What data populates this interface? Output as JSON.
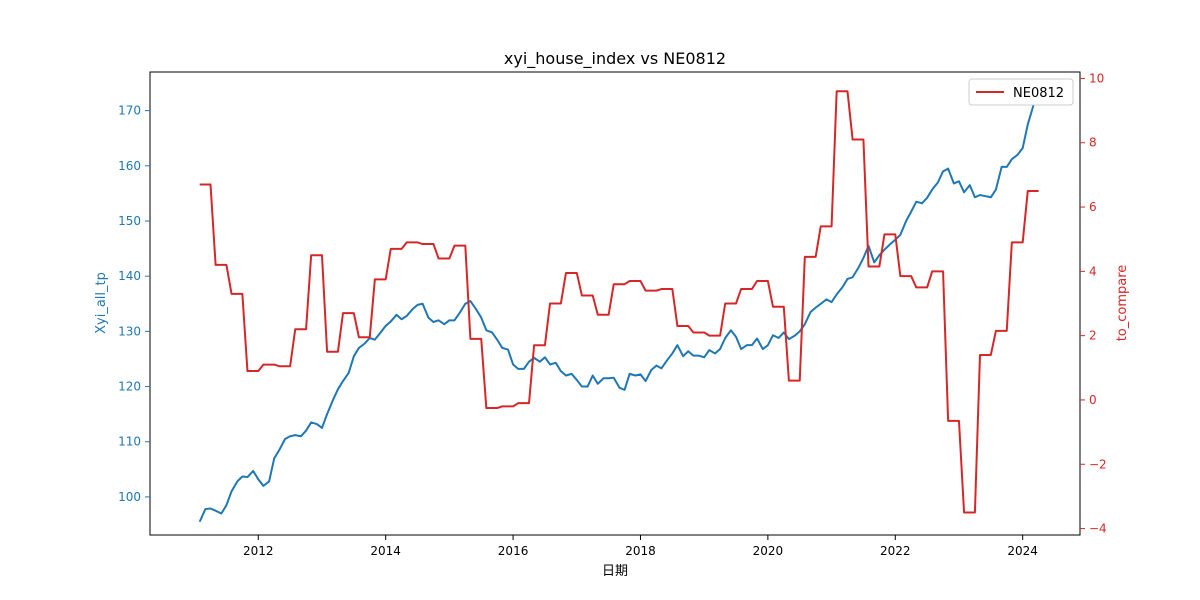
{
  "chart_data": {
    "type": "line",
    "title": "xyi_house_index vs NE0812",
    "xlabel": "日期",
    "ylabel_left": "Xyi_all_tp",
    "ylabel_right": "to_compare",
    "xlim": [
      2010.3,
      2024.9
    ],
    "ylim_left": [
      93.1,
      177.0
    ],
    "ylim_right": [
      -4.2,
      10.2
    ],
    "x_ticks": [
      "2012",
      "2014",
      "2016",
      "2018",
      "2020",
      "2022",
      "2024"
    ],
    "x_tick_values": [
      2012,
      2014,
      2016,
      2018,
      2020,
      2022,
      2024
    ],
    "y_ticks_left": [
      100,
      110,
      120,
      130,
      140,
      150,
      160,
      170
    ],
    "y_ticks_right": [
      -4,
      -2,
      0,
      2,
      4,
      6,
      8,
      10
    ],
    "grid": false,
    "legend_position": "upper-right",
    "colors": {
      "left_series": "#1f77b4",
      "right_series": "#d62728",
      "axis": "#000000"
    },
    "series": [
      {
        "axis": "left",
        "x": [
          2011.08,
          2011.17,
          2011.25,
          2011.33,
          2011.42,
          2011.5,
          2011.58,
          2011.67,
          2011.75,
          2011.83,
          2011.92,
          2012.0,
          2012.08,
          2012.17,
          2012.25,
          2012.33,
          2012.42,
          2012.5,
          2012.58,
          2012.67,
          2012.75,
          2012.83,
          2012.92,
          2013.0,
          2013.08,
          2013.17,
          2013.25,
          2013.33,
          2013.42,
          2013.5,
          2013.58,
          2013.67,
          2013.75,
          2013.83,
          2013.92,
          2014.0,
          2014.08,
          2014.17,
          2014.25,
          2014.33,
          2014.42,
          2014.5,
          2014.58,
          2014.67,
          2014.75,
          2014.83,
          2014.92,
          2015.0,
          2015.08,
          2015.17,
          2015.25,
          2015.33,
          2015.42,
          2015.5,
          2015.58,
          2015.67,
          2015.75,
          2015.83,
          2015.92,
          2016.0,
          2016.08,
          2016.17,
          2016.25,
          2016.33,
          2016.42,
          2016.5,
          2016.58,
          2016.67,
          2016.75,
          2016.83,
          2016.92,
          2017.0,
          2017.08,
          2017.17,
          2017.25,
          2017.33,
          2017.42,
          2017.5,
          2017.58,
          2017.67,
          2017.75,
          2017.83,
          2017.92,
          2018.0,
          2018.08,
          2018.17,
          2018.25,
          2018.33,
          2018.42,
          2018.5,
          2018.58,
          2018.67,
          2018.75,
          2018.83,
          2018.92,
          2019.0,
          2019.08,
          2019.17,
          2019.25,
          2019.33,
          2019.42,
          2019.5,
          2019.58,
          2019.67,
          2019.75,
          2019.83,
          2019.92,
          2020.0,
          2020.08,
          2020.17,
          2020.25,
          2020.33,
          2020.42,
          2020.5,
          2020.58,
          2020.67,
          2020.75,
          2020.83,
          2020.92,
          2021.0,
          2021.08,
          2021.17,
          2021.25,
          2021.33,
          2021.42,
          2021.5,
          2021.58,
          2021.67,
          2021.75,
          2021.83,
          2021.92,
          2022.0,
          2022.08,
          2022.17,
          2022.25,
          2022.33,
          2022.42,
          2022.5,
          2022.58,
          2022.67,
          2022.75,
          2022.83,
          2022.92,
          2023.0,
          2023.08,
          2023.17,
          2023.25,
          2023.33,
          2023.42,
          2023.5,
          2023.58,
          2023.67,
          2023.75,
          2023.83,
          2023.92,
          2024.0,
          2024.08,
          2024.17,
          2024.25
        ],
        "values": [
          95.5,
          97.8,
          97.9,
          97.5,
          97.0,
          98.5,
          101.0,
          102.8,
          103.7,
          103.6,
          104.7,
          103.2,
          102.0,
          102.8,
          107.0,
          108.5,
          110.5,
          111.0,
          111.2,
          111.0,
          112.0,
          113.5,
          113.2,
          112.5,
          115.0,
          117.5,
          119.5,
          121.0,
          122.5,
          125.5,
          127.0,
          127.8,
          128.8,
          128.5,
          129.8,
          131.0,
          131.8,
          133.0,
          132.2,
          132.8,
          134.0,
          134.8,
          135.0,
          132.5,
          131.7,
          132.0,
          131.3,
          132.0,
          132.0,
          133.5,
          135.0,
          135.5,
          134.0,
          132.5,
          130.2,
          129.8,
          128.5,
          127.0,
          126.7,
          124.0,
          123.2,
          123.2,
          124.5,
          125.2,
          124.5,
          125.3,
          124.0,
          124.3,
          122.8,
          122.0,
          122.3,
          121.2,
          120.0,
          120.0,
          122.0,
          120.5,
          121.5,
          121.5,
          121.6,
          119.8,
          119.4,
          122.3,
          122.0,
          122.2,
          121.0,
          123.0,
          123.8,
          123.3,
          124.8,
          126.0,
          127.5,
          125.5,
          126.4,
          125.6,
          125.6,
          125.3,
          126.6,
          126.0,
          126.8,
          128.8,
          130.2,
          129.0,
          126.8,
          127.5,
          127.5,
          128.7,
          126.8,
          127.5,
          129.3,
          128.8,
          129.8,
          128.6,
          129.2,
          130.0,
          131.3,
          133.5,
          134.3,
          135.0,
          135.8,
          135.3,
          136.7,
          138.0,
          139.5,
          139.8,
          141.5,
          143.3,
          145.5,
          142.5,
          143.8,
          144.8,
          145.8,
          146.6,
          147.5,
          150.0,
          151.7,
          153.5,
          153.2,
          154.2,
          155.7,
          157.0,
          159.0,
          159.5,
          156.8,
          157.2,
          155.2,
          156.5,
          154.3,
          154.7,
          154.5,
          154.3,
          155.7,
          159.8,
          159.8,
          161.2,
          162.0,
          163.2,
          167.5,
          171.0,
          173.5
        ]
      },
      {
        "name": "NE0812",
        "axis": "right",
        "x": [
          2011.08,
          2011.17,
          2011.25,
          2011.33,
          2011.42,
          2011.5,
          2011.58,
          2011.67,
          2011.75,
          2011.83,
          2011.92,
          2012.0,
          2012.08,
          2012.17,
          2012.25,
          2012.33,
          2012.42,
          2012.5,
          2012.58,
          2012.67,
          2012.75,
          2012.83,
          2012.92,
          2013.0,
          2013.08,
          2013.17,
          2013.25,
          2013.33,
          2013.42,
          2013.5,
          2013.58,
          2013.67,
          2013.75,
          2013.83,
          2013.92,
          2014.0,
          2014.08,
          2014.17,
          2014.25,
          2014.33,
          2014.42,
          2014.5,
          2014.58,
          2014.67,
          2014.75,
          2014.83,
          2014.92,
          2015.0,
          2015.08,
          2015.17,
          2015.25,
          2015.33,
          2015.42,
          2015.5,
          2015.58,
          2015.67,
          2015.75,
          2015.83,
          2015.92,
          2016.0,
          2016.08,
          2016.17,
          2016.25,
          2016.33,
          2016.42,
          2016.5,
          2016.58,
          2016.67,
          2016.75,
          2016.83,
          2016.92,
          2017.0,
          2017.08,
          2017.17,
          2017.25,
          2017.33,
          2017.42,
          2017.5,
          2017.58,
          2017.67,
          2017.75,
          2017.83,
          2017.92,
          2018.0,
          2018.08,
          2018.17,
          2018.25,
          2018.33,
          2018.42,
          2018.5,
          2018.58,
          2018.67,
          2018.75,
          2018.83,
          2018.92,
          2019.0,
          2019.08,
          2019.17,
          2019.25,
          2019.33,
          2019.42,
          2019.5,
          2019.58,
          2019.67,
          2019.75,
          2019.83,
          2019.92,
          2020.0,
          2020.08,
          2020.17,
          2020.25,
          2020.33,
          2020.42,
          2020.5,
          2020.58,
          2020.67,
          2020.75,
          2020.83,
          2020.92,
          2021.0,
          2021.08,
          2021.17,
          2021.25,
          2021.33,
          2021.42,
          2021.5,
          2021.58,
          2021.67,
          2021.75,
          2021.83,
          2021.92,
          2022.0,
          2022.08,
          2022.17,
          2022.25,
          2022.33,
          2022.42,
          2022.5,
          2022.58,
          2022.67,
          2022.75,
          2022.83,
          2022.92,
          2023.0,
          2023.08,
          2023.17,
          2023.25,
          2023.33,
          2023.42,
          2023.5,
          2023.58,
          2023.67,
          2023.75,
          2023.83,
          2023.92,
          2024.0,
          2024.08,
          2024.17,
          2024.25
        ],
        "values": [
          6.7,
          6.7,
          6.7,
          4.2,
          4.2,
          4.2,
          3.3,
          3.3,
          3.3,
          0.9,
          0.9,
          0.9,
          1.1,
          1.1,
          1.1,
          1.05,
          1.05,
          1.05,
          2.2,
          2.2,
          2.2,
          4.5,
          4.5,
          4.5,
          1.5,
          1.5,
          1.5,
          2.7,
          2.7,
          2.7,
          1.95,
          1.95,
          1.95,
          3.75,
          3.75,
          3.75,
          4.7,
          4.7,
          4.7,
          4.9,
          4.9,
          4.9,
          4.85,
          4.85,
          4.85,
          4.4,
          4.4,
          4.4,
          4.8,
          4.8,
          4.8,
          1.9,
          1.9,
          1.9,
          -0.25,
          -0.25,
          -0.25,
          -0.2,
          -0.2,
          -0.2,
          -0.1,
          -0.1,
          -0.1,
          1.7,
          1.7,
          1.7,
          3.0,
          3.0,
          3.0,
          3.95,
          3.95,
          3.95,
          3.25,
          3.25,
          3.25,
          2.65,
          2.65,
          2.65,
          3.6,
          3.6,
          3.6,
          3.7,
          3.7,
          3.7,
          3.4,
          3.4,
          3.4,
          3.45,
          3.45,
          3.45,
          2.3,
          2.3,
          2.3,
          2.1,
          2.1,
          2.1,
          2.0,
          2.0,
          2.0,
          3.0,
          3.0,
          3.0,
          3.45,
          3.45,
          3.45,
          3.7,
          3.7,
          3.7,
          2.9,
          2.9,
          2.9,
          0.6,
          0.6,
          0.6,
          4.45,
          4.45,
          4.45,
          5.4,
          5.4,
          5.4,
          9.6,
          9.6,
          9.6,
          8.1,
          8.1,
          8.1,
          4.15,
          4.15,
          4.15,
          5.15,
          5.15,
          5.15,
          3.85,
          3.85,
          3.85,
          3.5,
          3.5,
          3.5,
          4.0,
          4.0,
          4.0,
          -0.65,
          -0.65,
          -0.65,
          -3.5,
          -3.5,
          -3.5,
          1.4,
          1.4,
          1.4,
          2.15,
          2.15,
          2.15,
          4.9,
          4.9,
          4.9,
          6.5,
          6.5,
          6.5
        ]
      }
    ]
  }
}
